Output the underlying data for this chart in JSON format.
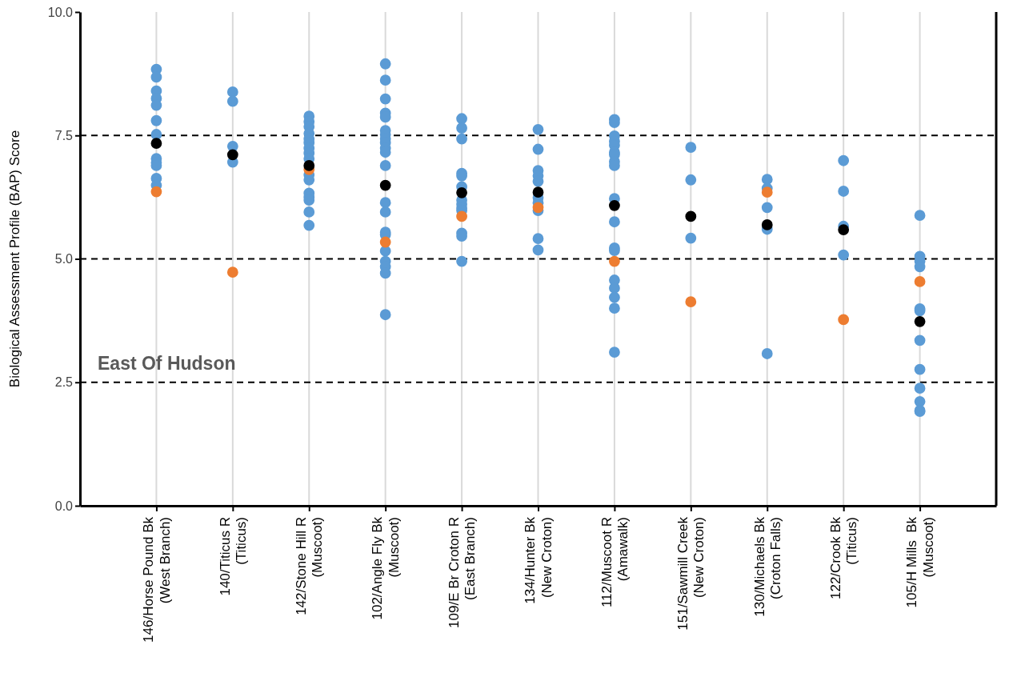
{
  "chart_data": {
    "type": "scatter",
    "ylabel": "Biological Assessment Profile (BAP) Score",
    "categories": [
      "146/Horse Pound Bk\n(West Branch)",
      "140/Titicus R\n(Titicus)",
      "142/Stone Hill R\n(Muscoot)",
      "102/Angle Fly Bk\n(Muscoot)",
      "109/E Br Croton R\n(East Branch)",
      "134/Hunter Bk\n(New Croton)",
      "112/Muscoot R\n(Amawalk)",
      "151/Sawmill Creek\n(New Croton)",
      "130/Michaels Bk\n(Croton Falls)",
      "122/Crook Bk\n(Titicus)",
      "105/H Mills  Bk\n(Muscoot)"
    ],
    "ylim": [
      0,
      10
    ],
    "yticks": [
      {
        "value": 0,
        "label": "0.0"
      },
      {
        "value": 2.5,
        "label": "2.5"
      },
      {
        "value": 5,
        "label": "5.0"
      },
      {
        "value": 7.5,
        "label": "7.5"
      },
      {
        "value": 10,
        "label": "10.0"
      }
    ],
    "grid": true,
    "marker": "circle",
    "annotations": [
      "East Of Hudson"
    ],
    "series": [
      {
        "color": "#5b9bd5",
        "x": [
          "146/Horse Pound Bk\n(West Branch)",
          "146/Horse Pound Bk\n(West Branch)",
          "146/Horse Pound Bk\n(West Branch)",
          "146/Horse Pound Bk\n(West Branch)",
          "146/Horse Pound Bk\n(West Branch)",
          "146/Horse Pound Bk\n(West Branch)",
          "146/Horse Pound Bk\n(West Branch)",
          "146/Horse Pound Bk\n(West Branch)",
          "146/Horse Pound Bk\n(West Branch)",
          "146/Horse Pound Bk\n(West Branch)",
          "146/Horse Pound Bk\n(West Branch)",
          "146/Horse Pound Bk\n(West Branch)",
          "140/Titicus R\n(Titicus)",
          "140/Titicus R\n(Titicus)",
          "140/Titicus R\n(Titicus)",
          "140/Titicus R\n(Titicus)",
          "142/Stone Hill R\n(Muscoot)",
          "142/Stone Hill R\n(Muscoot)",
          "142/Stone Hill R\n(Muscoot)",
          "142/Stone Hill R\n(Muscoot)",
          "142/Stone Hill R\n(Muscoot)",
          "142/Stone Hill R\n(Muscoot)",
          "142/Stone Hill R\n(Muscoot)",
          "142/Stone Hill R\n(Muscoot)",
          "142/Stone Hill R\n(Muscoot)",
          "142/Stone Hill R\n(Muscoot)",
          "142/Stone Hill R\n(Muscoot)",
          "142/Stone Hill R\n(Muscoot)",
          "142/Stone Hill R\n(Muscoot)",
          "142/Stone Hill R\n(Muscoot)",
          "142/Stone Hill R\n(Muscoot)",
          "142/Stone Hill R\n(Muscoot)",
          "102/Angle Fly Bk\n(Muscoot)",
          "102/Angle Fly Bk\n(Muscoot)",
          "102/Angle Fly Bk\n(Muscoot)",
          "102/Angle Fly Bk\n(Muscoot)",
          "102/Angle Fly Bk\n(Muscoot)",
          "102/Angle Fly Bk\n(Muscoot)",
          "102/Angle Fly Bk\n(Muscoot)",
          "102/Angle Fly Bk\n(Muscoot)",
          "102/Angle Fly Bk\n(Muscoot)",
          "102/Angle Fly Bk\n(Muscoot)",
          "102/Angle Fly Bk\n(Muscoot)",
          "102/Angle Fly Bk\n(Muscoot)",
          "102/Angle Fly Bk\n(Muscoot)",
          "102/Angle Fly Bk\n(Muscoot)",
          "102/Angle Fly Bk\n(Muscoot)",
          "102/Angle Fly Bk\n(Muscoot)",
          "102/Angle Fly Bk\n(Muscoot)",
          "102/Angle Fly Bk\n(Muscoot)",
          "102/Angle Fly Bk\n(Muscoot)",
          "102/Angle Fly Bk\n(Muscoot)",
          "102/Angle Fly Bk\n(Muscoot)",
          "109/E Br Croton R\n(East Branch)",
          "109/E Br Croton R\n(East Branch)",
          "109/E Br Croton R\n(East Branch)",
          "109/E Br Croton R\n(East Branch)",
          "109/E Br Croton R\n(East Branch)",
          "109/E Br Croton R\n(East Branch)",
          "109/E Br Croton R\n(East Branch)",
          "109/E Br Croton R\n(East Branch)",
          "109/E Br Croton R\n(East Branch)",
          "109/E Br Croton R\n(East Branch)",
          "109/E Br Croton R\n(East Branch)",
          "109/E Br Croton R\n(East Branch)",
          "109/E Br Croton R\n(East Branch)",
          "134/Hunter Bk\n(New Croton)",
          "134/Hunter Bk\n(New Croton)",
          "134/Hunter Bk\n(New Croton)",
          "134/Hunter Bk\n(New Croton)",
          "134/Hunter Bk\n(New Croton)",
          "134/Hunter Bk\n(New Croton)",
          "134/Hunter Bk\n(New Croton)",
          "134/Hunter Bk\n(New Croton)",
          "134/Hunter Bk\n(New Croton)",
          "134/Hunter Bk\n(New Croton)",
          "112/Muscoot R\n(Amawalk)",
          "112/Muscoot R\n(Amawalk)",
          "112/Muscoot R\n(Amawalk)",
          "112/Muscoot R\n(Amawalk)",
          "112/Muscoot R\n(Amawalk)",
          "112/Muscoot R\n(Amawalk)",
          "112/Muscoot R\n(Amawalk)",
          "112/Muscoot R\n(Amawalk)",
          "112/Muscoot R\n(Amawalk)",
          "112/Muscoot R\n(Amawalk)",
          "112/Muscoot R\n(Amawalk)",
          "112/Muscoot R\n(Amawalk)",
          "112/Muscoot R\n(Amawalk)",
          "112/Muscoot R\n(Amawalk)",
          "112/Muscoot R\n(Amawalk)",
          "112/Muscoot R\n(Amawalk)",
          "112/Muscoot R\n(Amawalk)",
          "112/Muscoot R\n(Amawalk)",
          "151/Sawmill Creek\n(New Croton)",
          "151/Sawmill Creek\n(New Croton)",
          "151/Sawmill Creek\n(New Croton)",
          "130/Michaels Bk\n(Croton Falls)",
          "130/Michaels Bk\n(Croton Falls)",
          "130/Michaels Bk\n(Croton Falls)",
          "130/Michaels Bk\n(Croton Falls)",
          "130/Michaels Bk\n(Croton Falls)",
          "122/Crook Bk\n(Titicus)",
          "122/Crook Bk\n(Titicus)",
          "122/Crook Bk\n(Titicus)",
          "122/Crook Bk\n(Titicus)",
          "105/H Mills  Bk\n(Muscoot)",
          "105/H Mills  Bk\n(Muscoot)",
          "105/H Mills  Bk\n(Muscoot)",
          "105/H Mills  Bk\n(Muscoot)",
          "105/H Mills  Bk\n(Muscoot)",
          "105/H Mills  Bk\n(Muscoot)",
          "105/H Mills  Bk\n(Muscoot)",
          "105/H Mills  Bk\n(Muscoot)",
          "105/H Mills  Bk\n(Muscoot)",
          "105/H Mills  Bk\n(Muscoot)",
          "105/H Mills  Bk\n(Muscoot)",
          "105/H Mills  Bk\n(Muscoot)"
        ],
        "values": [
          8.84,
          8.68,
          8.4,
          8.25,
          8.11,
          7.8,
          7.52,
          7.03,
          6.95,
          6.89,
          6.63,
          6.49,
          8.38,
          8.19,
          7.28,
          6.96,
          7.89,
          7.78,
          7.68,
          7.54,
          7.43,
          7.35,
          7.24,
          7.14,
          7.03,
          6.7,
          6.6,
          6.33,
          6.25,
          6.19,
          5.95,
          5.68,
          8.95,
          8.62,
          8.24,
          7.95,
          7.87,
          7.6,
          7.52,
          7.43,
          7.35,
          7.24,
          7.16,
          6.89,
          6.14,
          5.95,
          5.54,
          5.49,
          5.16,
          4.95,
          4.84,
          4.71,
          3.87,
          7.84,
          7.65,
          7.43,
          6.73,
          6.68,
          6.46,
          6.19,
          6.11,
          6.03,
          5.98,
          5.52,
          5.46,
          4.95,
          7.62,
          7.22,
          6.79,
          6.68,
          6.57,
          6.24,
          6.14,
          5.98,
          5.41,
          5.18,
          7.82,
          7.76,
          7.49,
          7.38,
          7.3,
          7.16,
          7.11,
          6.97,
          6.89,
          6.22,
          5.75,
          5.22,
          5.17,
          4.57,
          4.41,
          4.22,
          4.0,
          3.11,
          7.26,
          6.6,
          5.42,
          6.61,
          6.43,
          6.04,
          5.6,
          3.08,
          6.99,
          6.37,
          5.66,
          5.08,
          5.88,
          5.05,
          4.95,
          4.84,
          3.99,
          3.95,
          3.35,
          2.76,
          2.38,
          2.11,
          1.93,
          1.91
        ]
      },
      {
        "color": "#ed7d31",
        "values": [
          6.36,
          4.73,
          6.81,
          5.34,
          5.86,
          6.04,
          4.95,
          4.13,
          6.35,
          3.77,
          4.54
        ]
      },
      {
        "color": "#000000",
        "values": [
          7.34,
          7.11,
          6.89,
          6.49,
          6.34,
          6.35,
          6.08,
          5.86,
          5.69,
          5.59,
          3.73
        ]
      }
    ]
  }
}
